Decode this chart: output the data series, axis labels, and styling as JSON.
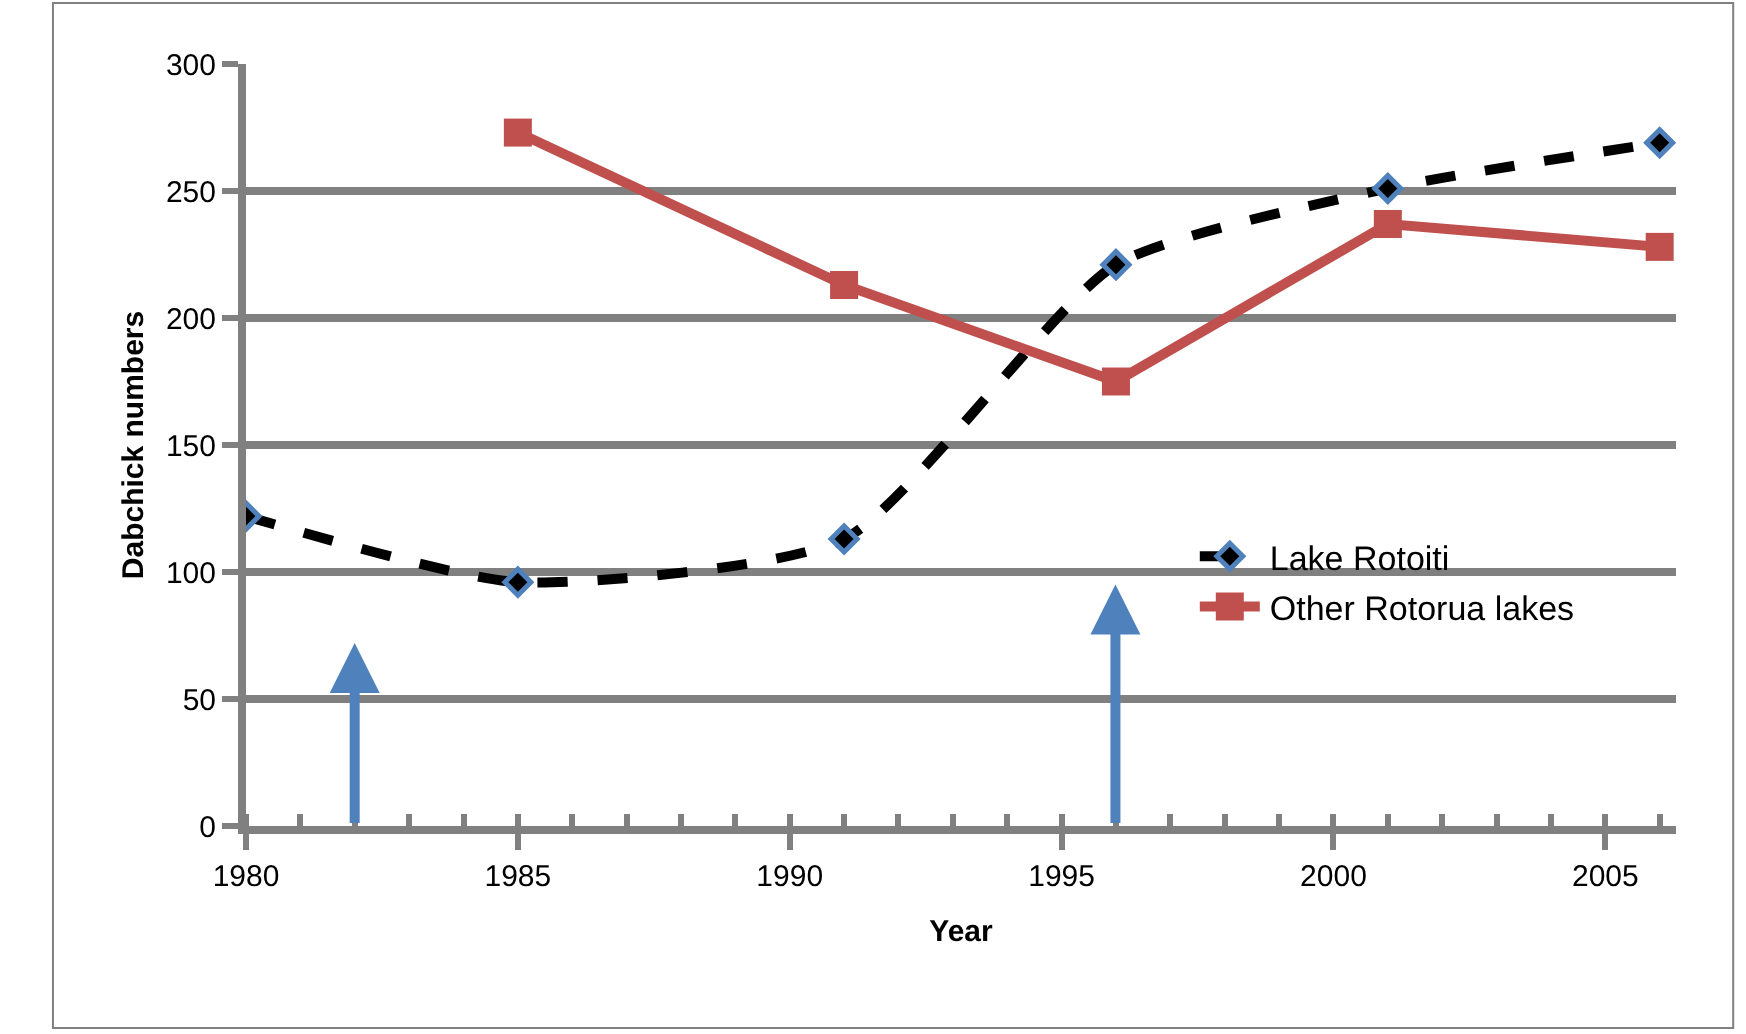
{
  "chart_data": {
    "type": "line",
    "xlabel": "Year",
    "ylabel": "Dabchick numbers",
    "xlim": [
      1980,
      2006.3
    ],
    "xticks": [
      1980,
      1985,
      1990,
      1995,
      2000,
      2005
    ],
    "ylim": [
      0,
      300
    ],
    "yticks": [
      0,
      50,
      100,
      150,
      200,
      250,
      300
    ],
    "grid": "y",
    "legend": "right",
    "series": [
      {
        "name": "Lake Rotoiti",
        "color": "#000000",
        "x": [
          1980,
          1985,
          1991,
          1996,
          2001,
          2006
        ],
        "values": [
          122,
          96,
          113,
          221,
          251,
          269
        ],
        "marker": "diamond",
        "line_style": "dashed"
      },
      {
        "name": "Other Rotorua lakes",
        "color": "#c0504d",
        "x": [
          1985,
          1991,
          1996,
          2001,
          2006
        ],
        "values": [
          273,
          213,
          175,
          237,
          228
        ],
        "marker": "square",
        "line_style": "solid"
      }
    ]
  }
}
